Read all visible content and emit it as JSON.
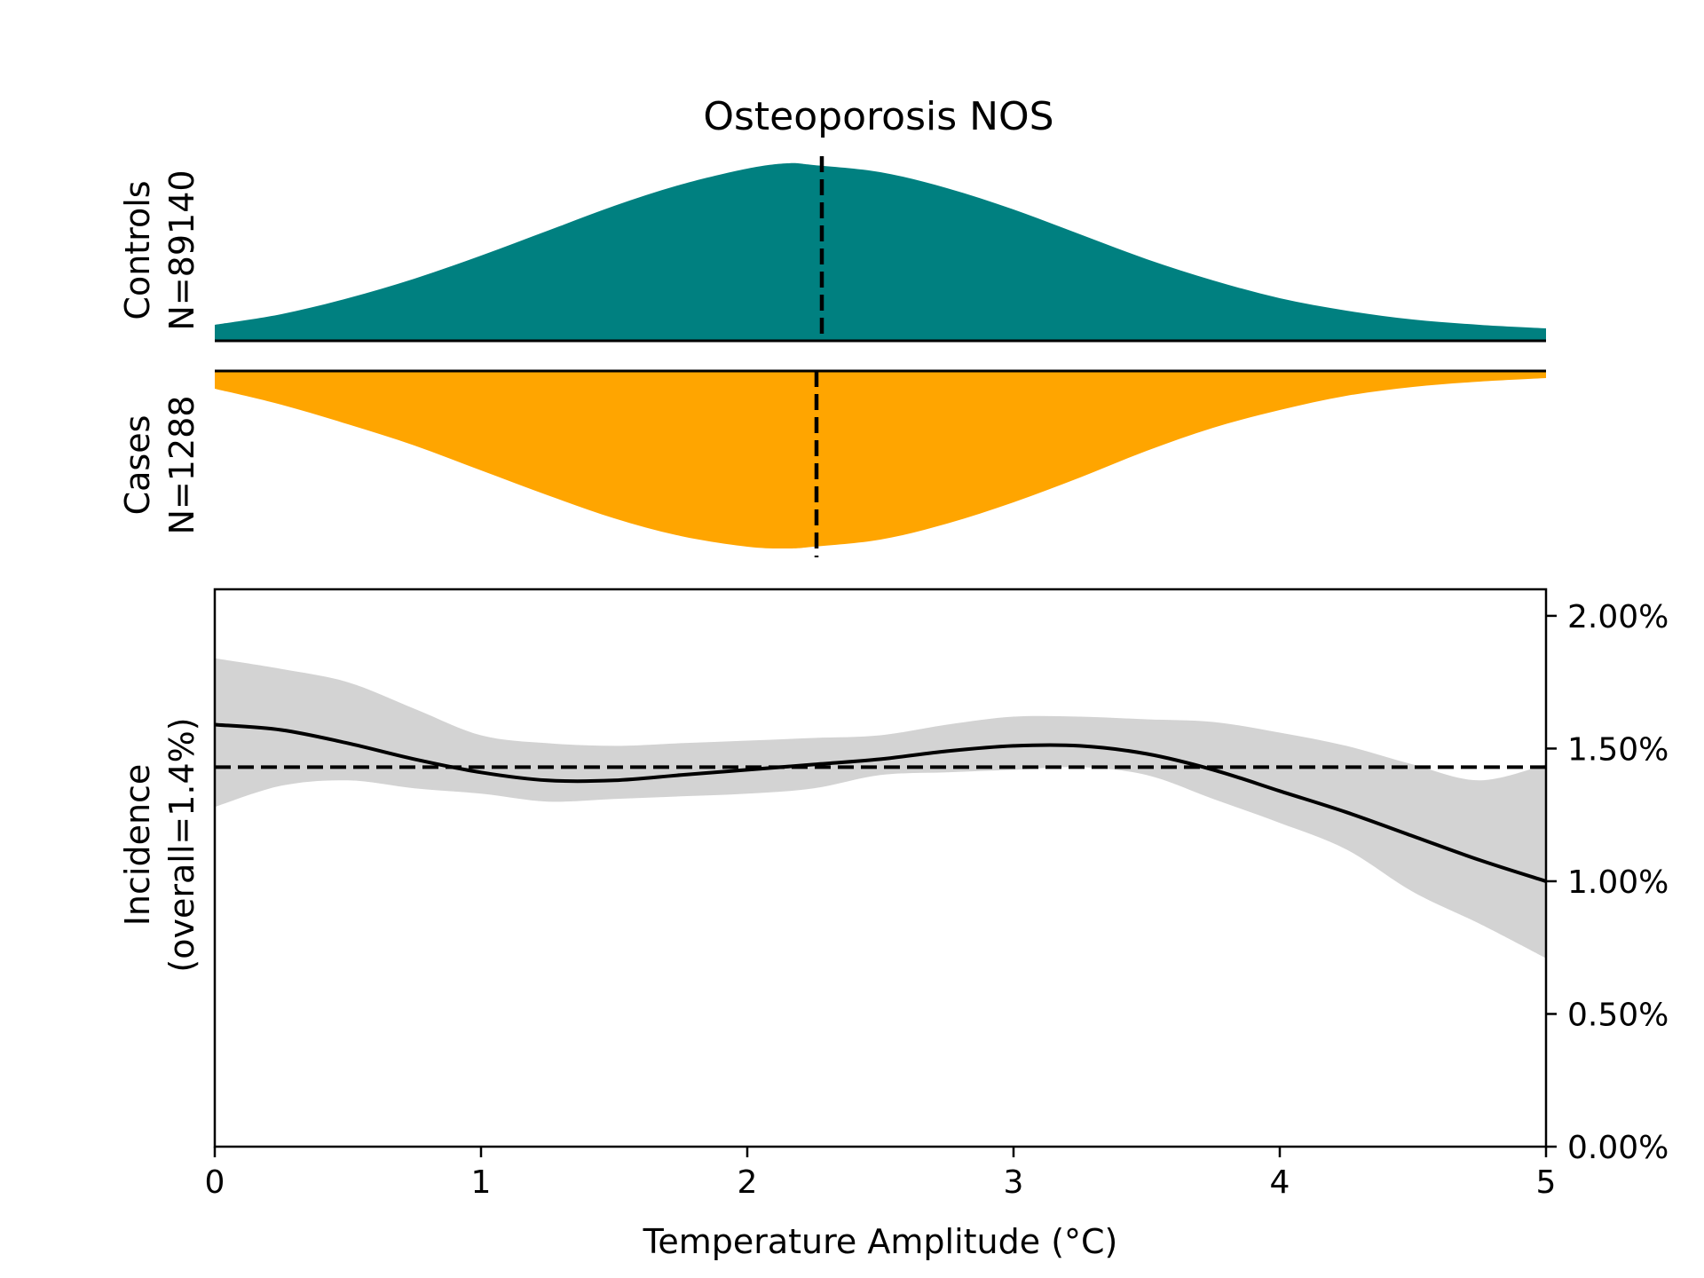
{
  "chart_data": [
    {
      "type": "area",
      "role": "controls-density",
      "title": "Osteoporosis NOS",
      "ylabel_line1": "Controls",
      "ylabel_line2": "N=89140",
      "color": "#008080",
      "xlim": [
        0,
        5
      ],
      "x": [
        0,
        0.25,
        0.5,
        0.75,
        1.0,
        1.25,
        1.5,
        1.75,
        2.0,
        2.15,
        2.25,
        2.5,
        2.75,
        3.0,
        3.25,
        3.5,
        3.75,
        4.0,
        4.25,
        4.5,
        4.75,
        5.0
      ],
      "values": [
        0.09,
        0.15,
        0.24,
        0.35,
        0.48,
        0.62,
        0.76,
        0.88,
        0.97,
        1.0,
        0.99,
        0.95,
        0.86,
        0.74,
        0.6,
        0.46,
        0.34,
        0.24,
        0.17,
        0.12,
        0.09,
        0.07
      ],
      "mean_line_x": 2.28
    },
    {
      "type": "area",
      "role": "cases-density",
      "ylabel_line1": "Cases",
      "ylabel_line2": "N=1288",
      "color": "#ffa500",
      "xlim": [
        0,
        5
      ],
      "x": [
        0,
        0.25,
        0.5,
        0.75,
        1.0,
        1.25,
        1.5,
        1.75,
        2.0,
        2.15,
        2.25,
        2.5,
        2.75,
        3.0,
        3.25,
        3.5,
        3.75,
        4.0,
        4.25,
        4.5,
        4.75,
        5.0
      ],
      "values": [
        0.1,
        0.19,
        0.3,
        0.42,
        0.56,
        0.7,
        0.83,
        0.93,
        0.99,
        1.0,
        0.99,
        0.95,
        0.86,
        0.74,
        0.6,
        0.45,
        0.32,
        0.22,
        0.14,
        0.09,
        0.06,
        0.04
      ],
      "mean_line_x": 2.26
    },
    {
      "type": "line",
      "role": "incidence",
      "xlabel": "Temperature Amplitude (°C)",
      "ylabel_line1": "Incidence",
      "ylabel_line2": "(overall=1.4%)",
      "xlim": [
        0,
        5
      ],
      "ylim": [
        0,
        2.1
      ],
      "xticks": [
        0,
        1,
        2,
        3,
        4,
        5
      ],
      "xtick_labels": [
        "0",
        "1",
        "2",
        "3",
        "4",
        "5"
      ],
      "yticks": [
        0,
        0.5,
        1.0,
        1.5,
        2.0
      ],
      "ytick_labels": [
        "0.00%",
        "0.50%",
        "1.00%",
        "1.50%",
        "2.00%"
      ],
      "overall_line": 1.43,
      "band_color": "#d3d3d3",
      "x": [
        0,
        0.25,
        0.5,
        0.75,
        1.0,
        1.25,
        1.5,
        1.75,
        2.0,
        2.25,
        2.5,
        2.75,
        3.0,
        3.25,
        3.5,
        3.75,
        4.0,
        4.25,
        4.5,
        4.75,
        5.0
      ],
      "values": [
        1.59,
        1.57,
        1.52,
        1.46,
        1.41,
        1.38,
        1.38,
        1.4,
        1.42,
        1.44,
        1.46,
        1.49,
        1.51,
        1.51,
        1.48,
        1.42,
        1.34,
        1.26,
        1.17,
        1.08,
        1.0
      ],
      "lower": [
        1.28,
        1.36,
        1.38,
        1.35,
        1.33,
        1.3,
        1.31,
        1.32,
        1.33,
        1.35,
        1.4,
        1.41,
        1.42,
        1.43,
        1.4,
        1.31,
        1.22,
        1.12,
        0.96,
        0.84,
        0.71
      ],
      "upper": [
        1.84,
        1.8,
        1.75,
        1.65,
        1.55,
        1.52,
        1.51,
        1.52,
        1.53,
        1.54,
        1.55,
        1.59,
        1.62,
        1.62,
        1.61,
        1.6,
        1.56,
        1.51,
        1.44,
        1.38,
        1.44
      ]
    }
  ]
}
